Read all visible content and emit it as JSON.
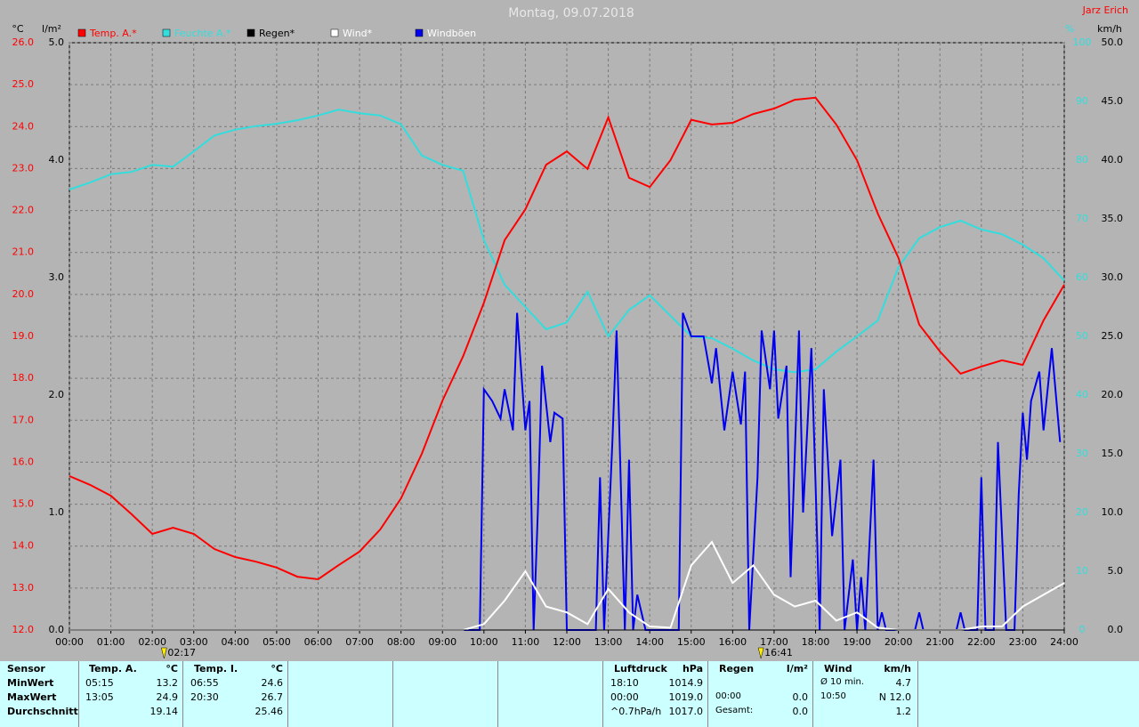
{
  "chart_data": {
    "type": "line",
    "title": "Montag, 09.07.2018",
    "author": "Jarz Erich",
    "y_label": "°C",
    "y2_label": "l/m²",
    "y3_label": "%",
    "y4_label": "km/h",
    "x": [
      0,
      0.5,
      1,
      1.5,
      2,
      2.5,
      3,
      3.5,
      4,
      4.5,
      5,
      5.5,
      6,
      6.5,
      7,
      7.5,
      8,
      8.5,
      9,
      9.5,
      10,
      10.5,
      11,
      11.5,
      12,
      12.5,
      13,
      13.5,
      14,
      14.5,
      15,
      15.5,
      16,
      16.5,
      17,
      17.5,
      18,
      18.5,
      19,
      19.5,
      20,
      20.5,
      21,
      21.5,
      22,
      22.5,
      23,
      23.5,
      24
    ],
    "xlim": [
      0,
      24
    ],
    "xticks": [
      {
        "value": 0,
        "label": "00:00"
      },
      {
        "value": 1,
        "label": "01:00"
      },
      {
        "value": 2,
        "label": "02:00"
      },
      {
        "value": 3,
        "label": "03:00"
      },
      {
        "value": 4,
        "label": "04:00"
      },
      {
        "value": 5,
        "label": "05:00"
      },
      {
        "value": 6,
        "label": "06:00"
      },
      {
        "value": 7,
        "label": "07:00"
      },
      {
        "value": 8,
        "label": "08:00"
      },
      {
        "value": 9,
        "label": "09:00"
      },
      {
        "value": 10,
        "label": "10:00"
      },
      {
        "value": 11,
        "label": "11:00"
      },
      {
        "value": 12,
        "label": "12:00"
      },
      {
        "value": 13,
        "label": "13:00"
      },
      {
        "value": 14,
        "label": "14:00"
      },
      {
        "value": 15,
        "label": "15:00"
      },
      {
        "value": 16,
        "label": "16:00"
      },
      {
        "value": 17,
        "label": "17:00"
      },
      {
        "value": 18,
        "label": "18:00"
      },
      {
        "value": 19,
        "label": "19:00"
      },
      {
        "value": 20,
        "label": "20:00"
      },
      {
        "value": 21,
        "label": "21:00"
      },
      {
        "value": 22,
        "label": "22:00"
      },
      {
        "value": 23,
        "label": "23:00"
      },
      {
        "value": 24,
        "label": "24:00"
      }
    ],
    "ylim": [
      12,
      26
    ],
    "yticks": [
      {
        "value": 12,
        "label": "12.0"
      },
      {
        "value": 13,
        "label": "13.0"
      },
      {
        "value": 14,
        "label": "14.0"
      },
      {
        "value": 15,
        "label": "15.0"
      },
      {
        "value": 16,
        "label": "16.0"
      },
      {
        "value": 17,
        "label": "17.0"
      },
      {
        "value": 18,
        "label": "18.0"
      },
      {
        "value": 19,
        "label": "19.0"
      },
      {
        "value": 20,
        "label": "20.0"
      },
      {
        "value": 21,
        "label": "21.0"
      },
      {
        "value": 22,
        "label": "22.0"
      },
      {
        "value": 23,
        "label": "23.0"
      },
      {
        "value": 24,
        "label": "24.0"
      },
      {
        "value": 25,
        "label": "25.0"
      },
      {
        "value": 26,
        "label": "26.0"
      }
    ],
    "y2lim": [
      0,
      5
    ],
    "y2ticks": [
      {
        "value": 0,
        "label": "0.0"
      },
      {
        "value": 1,
        "label": "1.0"
      },
      {
        "value": 2,
        "label": "2.0"
      },
      {
        "value": 3,
        "label": "3.0"
      },
      {
        "value": 4,
        "label": "4.0"
      },
      {
        "value": 5,
        "label": "5.0"
      }
    ],
    "y3lim": [
      0,
      100
    ],
    "y3ticks": [
      0,
      10,
      20,
      30,
      40,
      50,
      60,
      70,
      80,
      90,
      100
    ],
    "y4lim": [
      0,
      50
    ],
    "y4ticks": [
      {
        "value": 0,
        "label": "0.0"
      },
      {
        "value": 5,
        "label": "5.0"
      },
      {
        "value": 10,
        "label": "10.0"
      },
      {
        "value": 15,
        "label": "15.0"
      },
      {
        "value": 20,
        "label": "20.0"
      },
      {
        "value": 25,
        "label": "25.0"
      },
      {
        "value": 30,
        "label": "30.0"
      },
      {
        "value": 35,
        "label": "35.0"
      },
      {
        "value": 40,
        "label": "40.0"
      },
      {
        "value": 45,
        "label": "45.0"
      },
      {
        "value": 50,
        "label": "50.0"
      }
    ],
    "grid": true,
    "series": [
      {
        "name": "Temp. A.*",
        "color": "#ff0000",
        "legend_color": "#ff0000",
        "axis": "y",
        "values": [
          15.67,
          15.46,
          15.2,
          14.76,
          14.29,
          14.44,
          14.29,
          13.93,
          13.74,
          13.63,
          13.49,
          13.27,
          13.21,
          13.55,
          13.87,
          14.4,
          15.14,
          16.2,
          17.47,
          18.53,
          19.8,
          21.29,
          22.03,
          23.09,
          23.41,
          22.99,
          24.22,
          22.78,
          22.56,
          23.2,
          24.16,
          24.05,
          24.09,
          24.3,
          24.43,
          24.64,
          24.69,
          24.05,
          23.2,
          21.93,
          20.87,
          19.28,
          18.64,
          18.11,
          18.28,
          18.43,
          18.32,
          19.38,
          20.23
        ]
      },
      {
        "name": "Feuchte A.*",
        "color": "#33dddd",
        "legend_color": "#33dddd",
        "axis": "y3",
        "values": [
          75,
          76.2,
          77.6,
          78,
          79.2,
          78.9,
          81.5,
          84.2,
          85.2,
          85.8,
          86.2,
          86.8,
          87.6,
          88.6,
          88,
          87.6,
          86.1,
          80.8,
          79.2,
          78.2,
          66.4,
          58.8,
          55,
          51.2,
          52.4,
          57.6,
          50,
          54.5,
          57,
          53.5,
          50,
          49.7,
          47.9,
          45.9,
          44.4,
          43.9,
          44.4,
          47.4,
          50,
          52.7,
          61.8,
          66.7,
          68.6,
          69.7,
          68.2,
          67.4,
          65.6,
          63.3,
          59.5
        ]
      },
      {
        "name": "Regen*",
        "color": "#000000",
        "legend_color": "#000000",
        "axis": "y2",
        "x": [
          0,
          24
        ],
        "values": [
          0,
          0
        ]
      },
      {
        "name": "Wind*",
        "color": "#ffffff",
        "legend_color": "#ffffff",
        "axis": "y4",
        "values": [
          0,
          0,
          0,
          0,
          0,
          0,
          0,
          0,
          0,
          0,
          0,
          0,
          0,
          0,
          0,
          0,
          0,
          0,
          0,
          0,
          0.5,
          2.5,
          5,
          2,
          1.5,
          0.5,
          3.5,
          1.5,
          0.3,
          0.2,
          5.5,
          7.5,
          4,
          5.5,
          3,
          2,
          2.5,
          0.8,
          1.5,
          0.2,
          0,
          0,
          0,
          0,
          0.3,
          0.3,
          2,
          3,
          4
        ]
      },
      {
        "name": "Windböen",
        "color": "#0000ee",
        "legend_color": "#ffffff",
        "axis": "y4",
        "x": [
          0,
          9.9,
          10,
          10.2,
          10.4,
          10.5,
          10.7,
          10.8,
          11,
          11.1,
          11.2,
          11.3,
          11.4,
          11.6,
          11.7,
          11.9,
          12,
          12.7,
          12.8,
          12.9,
          13.1,
          13.2,
          13.4,
          13.5,
          13.6,
          13.7,
          13.9,
          14.7,
          14.8,
          15,
          15.3,
          15.5,
          15.6,
          15.8,
          16,
          16.2,
          16.3,
          16.4,
          16.6,
          16.7,
          16.9,
          17,
          17.1,
          17.3,
          17.4,
          17.6,
          17.7,
          17.9,
          18,
          18.1,
          18.2,
          18.4,
          18.6,
          18.7,
          18.9,
          19,
          19.1,
          19.2,
          19.4,
          19.5,
          19.6,
          19.7,
          20.4,
          20.5,
          20.6,
          21.4,
          21.5,
          21.6,
          21.9,
          22,
          22.1,
          22.3,
          22.4,
          22.6,
          22.8,
          22.9,
          23,
          23.1,
          23.2,
          23.4,
          23.5,
          23.7,
          23.9
        ],
        "values": [
          0,
          0,
          20.5,
          19.5,
          18,
          20.5,
          17,
          27,
          17,
          19.5,
          0,
          10,
          22.5,
          16,
          18.5,
          18,
          0,
          0,
          13,
          0,
          16,
          25.5,
          0,
          14.5,
          0,
          3,
          0,
          0,
          27,
          25,
          25,
          21,
          24,
          17,
          22,
          17.5,
          22,
          0,
          13,
          25.5,
          20.5,
          25.5,
          18,
          22.5,
          4.5,
          25.5,
          10,
          24,
          12.5,
          0,
          20.5,
          8,
          14.5,
          0,
          6,
          0,
          4.5,
          0,
          14.5,
          0,
          1.5,
          0,
          0,
          1.5,
          0,
          0,
          1.5,
          0,
          0,
          13,
          0,
          0,
          16,
          0,
          0,
          11.5,
          18.5,
          14.5,
          19.5,
          22,
          17,
          24,
          16
        ]
      }
    ],
    "annotations": [
      {
        "text": "02:17",
        "x": 2.283
      },
      {
        "text": "16:41",
        "x": 16.683
      }
    ]
  },
  "table": {
    "row_labels": [
      "Sensor",
      "MinWert",
      "MaxWert",
      "Durchschnitt"
    ],
    "groups": [
      {
        "title": "Temp. A.",
        "unit": "°C",
        "cells": [
          [
            "05:15",
            "13.2"
          ],
          [
            "13:05",
            "24.9"
          ],
          [
            null,
            "19.14"
          ]
        ]
      },
      {
        "title": "Temp. I.",
        "unit": "°C",
        "cells": [
          [
            "06:55",
            "24.6"
          ],
          [
            "20:30",
            "26.7"
          ],
          [
            null,
            "25.46"
          ]
        ]
      },
      {
        "title": "Luftdruck",
        "unit": "hPa",
        "cells": [
          [
            "18:10",
            "1014.9"
          ],
          [
            "00:00",
            "1019.0"
          ],
          [
            "^0.7hPa/h",
            "1017.0"
          ]
        ]
      },
      {
        "title": "Regen",
        "unit": "l/m²",
        "cells": [
          [
            null,
            null
          ],
          [
            "00:00",
            "0.0"
          ],
          [
            "Gesamt:",
            "0.0"
          ]
        ]
      },
      {
        "title": "Wind",
        "unit": "km/h",
        "cells": [
          [
            "Ø 10 min.",
            "4.7"
          ],
          [
            "10:50",
            "N 12.0"
          ],
          [
            null,
            "1.2"
          ]
        ]
      }
    ]
  }
}
